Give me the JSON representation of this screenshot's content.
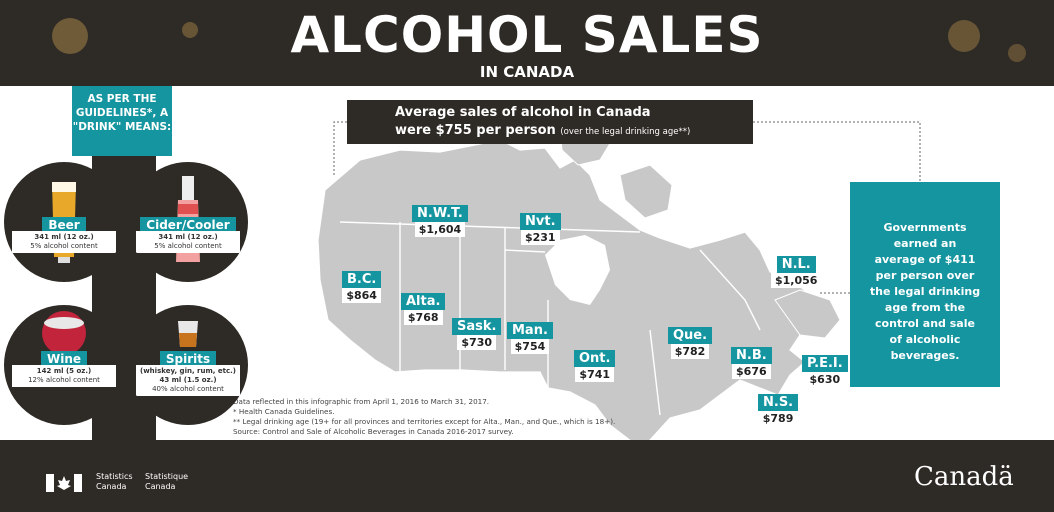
{
  "header": {
    "title": "ALCOHOL SALES",
    "subtitle": "IN CANADA"
  },
  "guidelines": {
    "heading": "AS PER THE GUIDELINES*, A \"DRINK\" MEANS:"
  },
  "drinks": [
    {
      "name": "Beer",
      "size": "341 ml (12 oz.)",
      "content": "5% alcohol content"
    },
    {
      "name": "Cider/Cooler",
      "size": "341 ml (12 oz.)",
      "content": "5% alcohol content"
    },
    {
      "name": "Wine",
      "size": "142 ml (5 oz.)",
      "content": "12% alcohol content"
    },
    {
      "name": "Spirits",
      "type": "(whiskey, gin, rum, etc.)",
      "size": "43 ml (1.5 oz.)",
      "content": "40% alcohol content"
    }
  ],
  "average": {
    "line1": "Average sales of alcohol in Canada",
    "line2_bold": "were $755 per person",
    "line2_small": "(over the legal drinking age**)"
  },
  "government": {
    "text": "Governments earned an average of $411 per person over the legal drinking age from the control and sale of alcoholic beverages."
  },
  "provinces": [
    {
      "name": "N.W.T.",
      "value": "$1,604"
    },
    {
      "name": "Nvt.",
      "value": "$231"
    },
    {
      "name": "B.C.",
      "value": "$864"
    },
    {
      "name": "Alta.",
      "value": "$768"
    },
    {
      "name": "Sask.",
      "value": "$730"
    },
    {
      "name": "Man.",
      "value": "$754"
    },
    {
      "name": "Ont.",
      "value": "$741"
    },
    {
      "name": "Que.",
      "value": "$782"
    },
    {
      "name": "N.L.",
      "value": "$1,056"
    },
    {
      "name": "N.B.",
      "value": "$676"
    },
    {
      "name": "P.E.I.",
      "value": "$630"
    },
    {
      "name": "N.S.",
      "value": "$789"
    }
  ],
  "notes": [
    "Data reflected in this infographic from April 1, 2016 to March 31, 2017.",
    "* Health Canada Guidelines.",
    "** Legal drinking age (19+ for all provinces and territories except for Alta., Man., and Que., which is 18+).",
    "Source: Control and Sale of Alcoholic Beverages in Canada 2016-2017 survey."
  ],
  "footer": {
    "sc_en_1": "Statistics",
    "sc_en_2": "Canada",
    "sc_fr_1": "Statistique",
    "sc_fr_2": "Canada",
    "wordmark": "Canadä"
  },
  "colors": {
    "dark": "#2e2a25",
    "teal": "#1595a0",
    "map": "#c8c8c8"
  }
}
